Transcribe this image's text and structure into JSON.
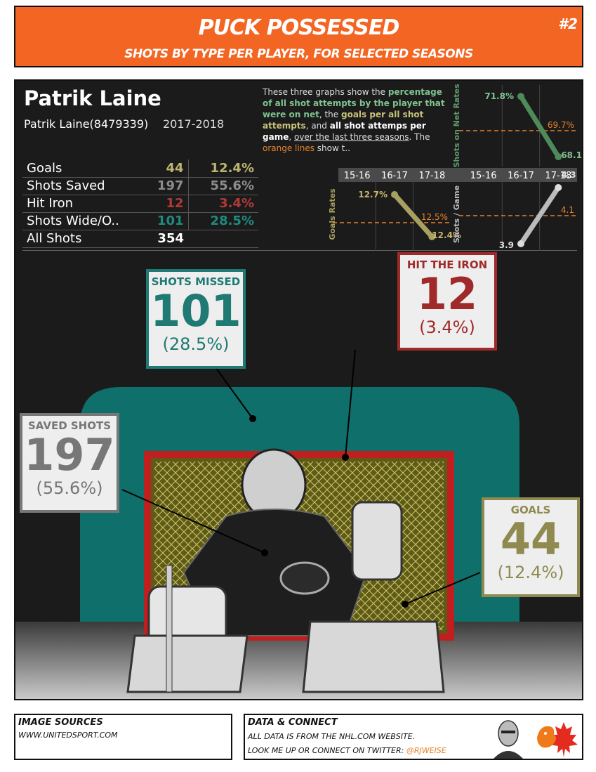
{
  "header": {
    "title": "PUCK POSSESSED",
    "subtitle": "SHOTS BY TYPE PER PLAYER, FOR SELECTED SEASONS",
    "number": "#2"
  },
  "player": {
    "name": "Patrik Laine",
    "id_label": "Patrik Laine(8479339)",
    "season": "2017-2018"
  },
  "stats": [
    {
      "label": "Goals",
      "count": "44",
      "pct": "12.4%",
      "color": "#bdb572"
    },
    {
      "label": "Shots Saved",
      "count": "197",
      "pct": "55.6%",
      "color": "#8c8c8c"
    },
    {
      "label": "Hit Iron",
      "count": "12",
      "pct": "3.4%",
      "color": "#b33a3a"
    },
    {
      "label": "Shots Wide/O..",
      "count": "101",
      "pct": "28.5%",
      "color": "#1f8a7f"
    },
    {
      "label": "All Shots",
      "count": "354",
      "pct": "",
      "color": "#ffffff"
    }
  ],
  "description": {
    "p1": "These three graphs show the ",
    "p2": "percentage of all shot attempts by the player that were on net",
    "p3": ", the ",
    "p4": "goals per all shot attempts",
    "p5": ", and ",
    "p6": "all shot attemps per game",
    "p7": ", ",
    "p8": "over the last three seasons",
    "p9": ". The ",
    "p10": "orange lines",
    "p11": " show t.."
  },
  "chart_data": [
    {
      "type": "line",
      "ylabel": "Shots on Net Rates",
      "categories": [
        "15-16",
        "16-17",
        "17-18"
      ],
      "values": [
        null,
        71.8,
        68.1
      ],
      "value_labels": [
        "",
        "71.8%",
        "68.1%"
      ],
      "reference": 69.7,
      "reference_label": "69.7%",
      "color": "#4e8a5a"
    },
    {
      "type": "line",
      "ylabel": "Goals Rates",
      "categories": [
        "15-16",
        "16-17",
        "17-18"
      ],
      "values": [
        null,
        12.7,
        12.4
      ],
      "value_labels": [
        "",
        "12.7%",
        "12.4%"
      ],
      "reference": 12.5,
      "reference_label": "12.5%",
      "color": "#a8a060"
    },
    {
      "type": "line",
      "ylabel": "Shots / Game",
      "categories": [
        "15-16",
        "16-17",
        "17-18"
      ],
      "values": [
        null,
        3.9,
        4.3
      ],
      "value_labels": [
        "",
        "3.9",
        "4.3"
      ],
      "reference": 4.1,
      "reference_label": "4.1",
      "color": "#bbbbbb"
    }
  ],
  "callouts": {
    "missed": {
      "title": "SHOTS MISSED",
      "value": "101",
      "pct": "(28.5%)",
      "color": "#1f7a73"
    },
    "iron": {
      "title": "HIT THE IRON",
      "value": "12",
      "pct": "(3.4%)",
      "color": "#a02a2a"
    },
    "saved": {
      "title": "SAVED SHOTS",
      "value": "197",
      "pct": "(55.6%)",
      "color": "#777777"
    },
    "goals": {
      "title": "GOALS",
      "value": "44",
      "pct": "(12.4%)",
      "color": "#8f8a50"
    }
  },
  "footer": {
    "sources_title": "IMAGE SOURCES",
    "sources_text": "WWW.UNITEDSPORT.COM",
    "data_title": "DATA & CONNECT",
    "data_line1": "ALL DATA IS FROM THE NHL.COM WEBSITE.",
    "data_line2": "LOOK ME UP OR CONNECT ON TWITTER: ",
    "twitter": "@RJWEISE"
  }
}
